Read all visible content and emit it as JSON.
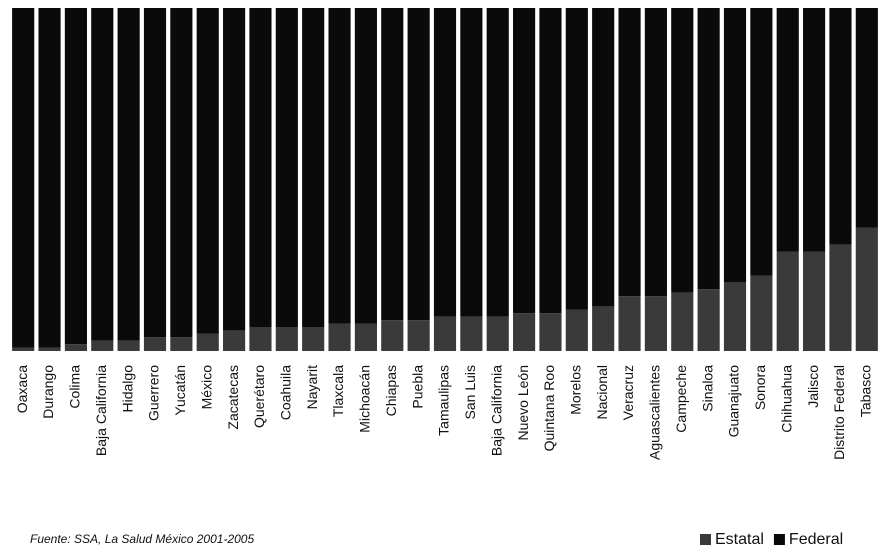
{
  "chart_data": {
    "type": "stacked_bar",
    "categories": [
      "Oaxaca",
      "Durango",
      "Colima",
      "Baja California",
      "Hidalgo",
      "Guerrero",
      "Yucatán",
      "México",
      "Zacatecas",
      "Querétaro",
      "Coahuila",
      "Nayarit",
      "Tlaxcala",
      "Michoacán",
      "Chiapas",
      "Puebla",
      "Tamaulipas",
      "San Luis",
      "Baja California",
      "Nuevo León",
      "Quintana Roo",
      "Morelos",
      "Nacional",
      "Veracruz",
      "Aguascalientes",
      "Campeche",
      "Sinaloa",
      "Guanajuato",
      "Sonora",
      "Chihuahua",
      "Jalisco",
      "Distrito Federal",
      "Tabasco"
    ],
    "series": [
      {
        "name": "Estatal",
        "color": "#3a3a3a",
        "values": [
          1,
          1,
          2,
          3,
          3,
          4,
          4,
          5,
          6,
          7,
          7,
          7,
          8,
          8,
          9,
          9,
          10,
          10,
          10,
          11,
          11,
          12,
          13,
          16,
          16,
          17,
          18,
          20,
          22,
          29,
          29,
          31,
          36
        ]
      },
      {
        "name": "Federal",
        "color": "#0a0a0a",
        "values": [
          99,
          99,
          98,
          97,
          97,
          96,
          96,
          95,
          94,
          93,
          93,
          93,
          92,
          92,
          91,
          91,
          90,
          90,
          90,
          89,
          89,
          88,
          87,
          84,
          84,
          83,
          82,
          80,
          78,
          71,
          71,
          69,
          64
        ]
      }
    ],
    "ylim": [
      0,
      100
    ],
    "source": "Fuente: SSA, La Salud México 2001-2005",
    "legend": "bottom-right"
  }
}
